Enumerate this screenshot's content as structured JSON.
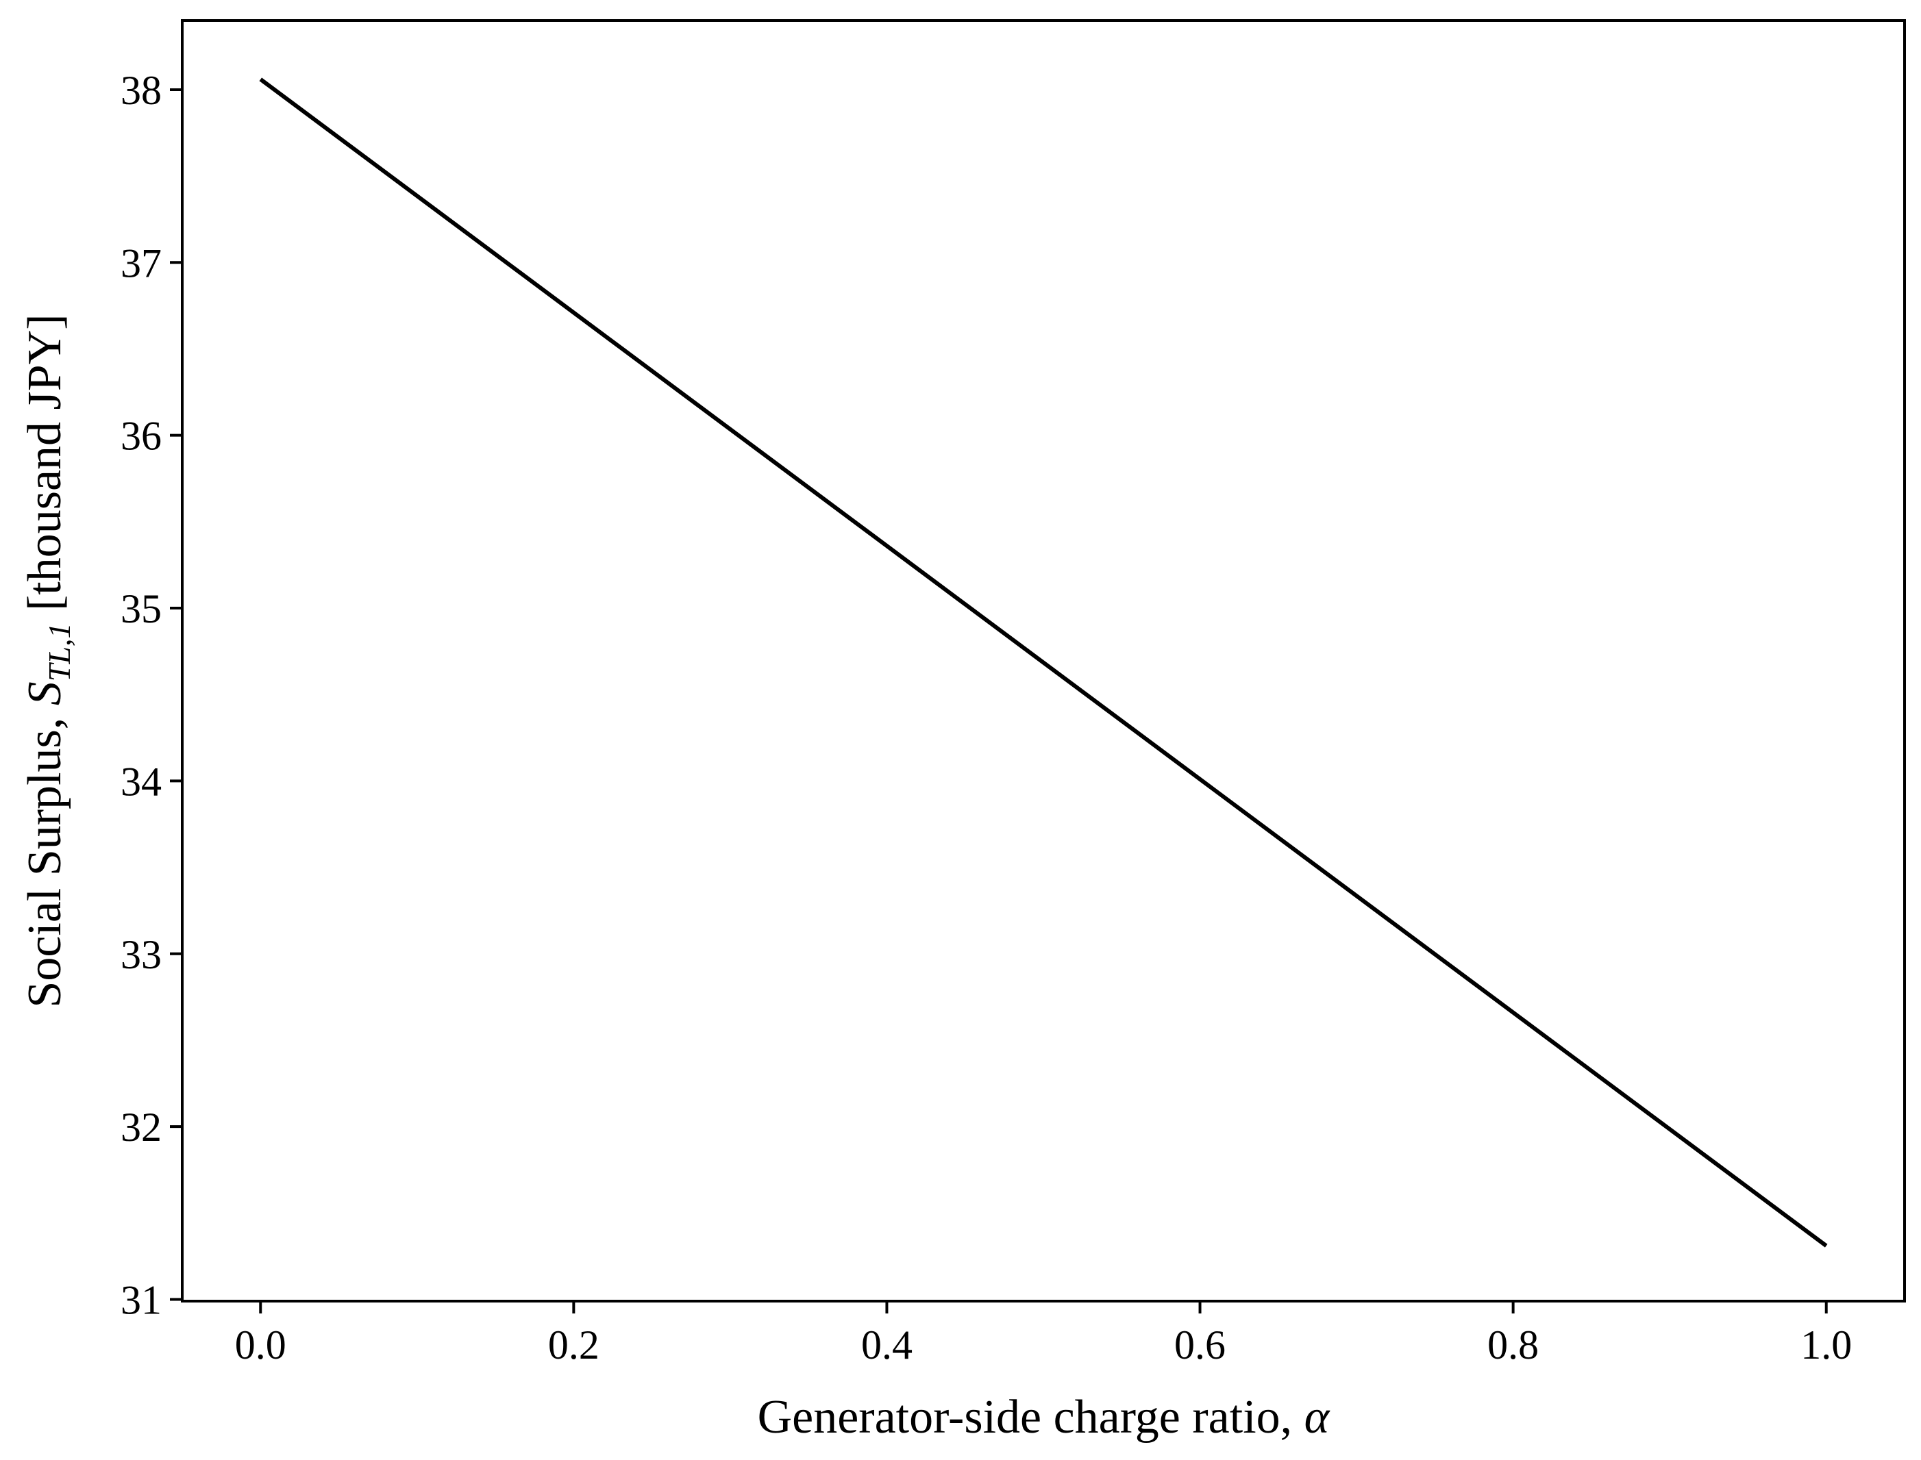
{
  "chart_data": {
    "type": "line",
    "xlabel": {
      "text": "Generator-side charge ratio, ",
      "symbol": "α"
    },
    "ylabel": {
      "text": "Social Surplus, ",
      "symbol": "S",
      "subscript": "TL,1",
      "unit": " [thousand JPY]"
    },
    "xlim": [
      -0.05,
      1.05
    ],
    "ylim": [
      30.99,
      38.4
    ],
    "xticks": [
      0.0,
      0.2,
      0.4,
      0.6,
      0.8,
      1.0
    ],
    "xtick_labels": [
      "0.0",
      "0.2",
      "0.4",
      "0.6",
      "0.8",
      "1.0"
    ],
    "yticks": [
      31,
      32,
      33,
      34,
      35,
      36,
      37,
      38
    ],
    "ytick_labels": [
      "31",
      "32",
      "33",
      "34",
      "35",
      "36",
      "37",
      "38"
    ],
    "grid": false,
    "series": [
      {
        "color": "#000000",
        "x": [
          0.0,
          1.0
        ],
        "y": [
          38.06,
          31.31
        ]
      }
    ]
  }
}
